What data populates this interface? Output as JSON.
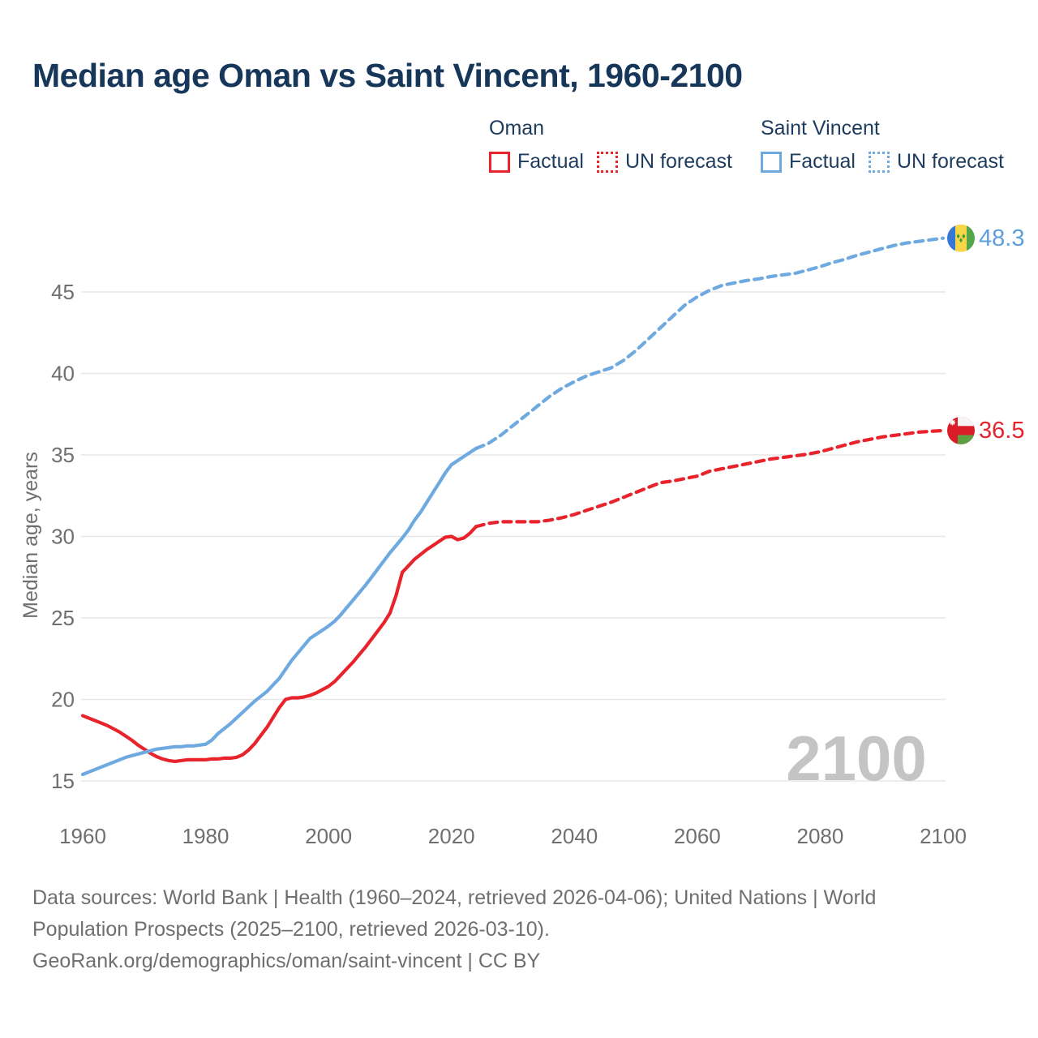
{
  "title": "Median age Oman vs Saint Vincent, 1960-2100",
  "legend": {
    "groups": [
      {
        "name": "Oman",
        "color": "#e8232b",
        "items": [
          {
            "label": "Factual",
            "style": "solid"
          },
          {
            "label": "UN forecast",
            "style": "dotted"
          }
        ]
      },
      {
        "name": "Saint Vincent",
        "color": "#6ea9e0",
        "items": [
          {
            "label": "Factual",
            "style": "solid"
          },
          {
            "label": "UN forecast",
            "style": "dotted"
          }
        ]
      }
    ]
  },
  "watermark": "2100",
  "end_labels": {
    "saint_vincent": "48.3",
    "oman": "36.5"
  },
  "footer": {
    "lines": [
      "Data sources: World Bank | Health (1960–2024, retrieved 2026-04-06); United Nations | World",
      "Population Prospects (2025–2100, retrieved 2026-03-10).",
      "GeoRank.org/demographics/oman/saint-vincent | CC BY"
    ]
  },
  "colors": {
    "oman_red": "#e8232b",
    "saint_vincent_blue": "#6ea9e0",
    "blue_label": "#5d9fdd",
    "title_navy": "#16365a",
    "axis_gray": "#6f6f6f",
    "grid_gray": "#e7e7e7",
    "watermark_gray": "#c4c4c4"
  },
  "chart_data": {
    "type": "line",
    "title": "Median age Oman vs Saint Vincent, 1960-2100",
    "xlabel": "",
    "ylabel": "Median age, years",
    "x_ticks": [
      1960,
      1980,
      2000,
      2020,
      2040,
      2060,
      2080,
      2100
    ],
    "y_ticks": [
      15,
      20,
      25,
      30,
      35,
      40,
      45
    ],
    "xlim": [
      1960,
      2100
    ],
    "ylim": [
      15,
      45
    ],
    "grid": "horizontal-only",
    "legend_position": "top",
    "series": [
      {
        "name": "Oman Factual",
        "color": "#e8232b",
        "dash": false,
        "points": [
          [
            1960,
            19.0
          ],
          [
            1961,
            18.85
          ],
          [
            1962,
            18.7
          ],
          [
            1963,
            18.55
          ],
          [
            1964,
            18.4
          ],
          [
            1965,
            18.2
          ],
          [
            1966,
            18.0
          ],
          [
            1967,
            17.75
          ],
          [
            1968,
            17.5
          ],
          [
            1969,
            17.2
          ],
          [
            1970,
            16.95
          ],
          [
            1971,
            16.7
          ],
          [
            1972,
            16.5
          ],
          [
            1973,
            16.35
          ],
          [
            1974,
            16.25
          ],
          [
            1975,
            16.2
          ],
          [
            1976,
            16.25
          ],
          [
            1977,
            16.3
          ],
          [
            1978,
            16.3
          ],
          [
            1979,
            16.3
          ],
          [
            1980,
            16.3
          ],
          [
            1981,
            16.35
          ],
          [
            1982,
            16.35
          ],
          [
            1983,
            16.4
          ],
          [
            1984,
            16.4
          ],
          [
            1985,
            16.45
          ],
          [
            1986,
            16.6
          ],
          [
            1987,
            16.9
          ],
          [
            1988,
            17.3
          ],
          [
            1989,
            17.8
          ],
          [
            1990,
            18.3
          ],
          [
            1991,
            18.9
          ],
          [
            1992,
            19.5
          ],
          [
            1993,
            20.0
          ],
          [
            1994,
            20.1
          ],
          [
            1995,
            20.1
          ],
          [
            1996,
            20.15
          ],
          [
            1997,
            20.25
          ],
          [
            1998,
            20.4
          ],
          [
            1999,
            20.6
          ],
          [
            2000,
            20.8
          ],
          [
            2001,
            21.1
          ],
          [
            2002,
            21.5
          ],
          [
            2003,
            21.9
          ],
          [
            2004,
            22.3
          ],
          [
            2005,
            22.75
          ],
          [
            2006,
            23.2
          ],
          [
            2007,
            23.7
          ],
          [
            2008,
            24.2
          ],
          [
            2009,
            24.7
          ],
          [
            2010,
            25.3
          ],
          [
            2011,
            26.4
          ],
          [
            2012,
            27.8
          ],
          [
            2013,
            28.2
          ],
          [
            2014,
            28.6
          ],
          [
            2015,
            28.9
          ],
          [
            2016,
            29.2
          ],
          [
            2017,
            29.45
          ],
          [
            2018,
            29.7
          ],
          [
            2019,
            29.95
          ],
          [
            2020,
            30.0
          ],
          [
            2021,
            29.8
          ],
          [
            2022,
            29.9
          ],
          [
            2023,
            30.2
          ],
          [
            2024,
            30.6
          ]
        ]
      },
      {
        "name": "Oman UN forecast",
        "color": "#e8232b",
        "dash": true,
        "points": [
          [
            2024,
            30.6
          ],
          [
            2026,
            30.8
          ],
          [
            2028,
            30.9
          ],
          [
            2030,
            30.9
          ],
          [
            2032,
            30.9
          ],
          [
            2034,
            30.9
          ],
          [
            2036,
            31.0
          ],
          [
            2038,
            31.15
          ],
          [
            2040,
            31.35
          ],
          [
            2042,
            31.6
          ],
          [
            2044,
            31.85
          ],
          [
            2046,
            32.1
          ],
          [
            2048,
            32.4
          ],
          [
            2050,
            32.7
          ],
          [
            2052,
            33.0
          ],
          [
            2054,
            33.3
          ],
          [
            2056,
            33.4
          ],
          [
            2058,
            33.55
          ],
          [
            2060,
            33.7
          ],
          [
            2062,
            34.0
          ],
          [
            2064,
            34.15
          ],
          [
            2066,
            34.3
          ],
          [
            2068,
            34.45
          ],
          [
            2070,
            34.6
          ],
          [
            2072,
            34.75
          ],
          [
            2074,
            34.85
          ],
          [
            2076,
            34.95
          ],
          [
            2078,
            35.05
          ],
          [
            2080,
            35.2
          ],
          [
            2082,
            35.4
          ],
          [
            2084,
            35.6
          ],
          [
            2086,
            35.8
          ],
          [
            2088,
            35.95
          ],
          [
            2090,
            36.1
          ],
          [
            2092,
            36.2
          ],
          [
            2094,
            36.3
          ],
          [
            2096,
            36.4
          ],
          [
            2098,
            36.45
          ],
          [
            2100,
            36.5
          ]
        ]
      },
      {
        "name": "Saint Vincent Factual",
        "color": "#6ea9e0",
        "dash": false,
        "points": [
          [
            1960,
            15.4
          ],
          [
            1961,
            15.55
          ],
          [
            1962,
            15.7
          ],
          [
            1963,
            15.85
          ],
          [
            1964,
            16.0
          ],
          [
            1965,
            16.15
          ],
          [
            1966,
            16.3
          ],
          [
            1967,
            16.45
          ],
          [
            1968,
            16.55
          ],
          [
            1969,
            16.65
          ],
          [
            1970,
            16.75
          ],
          [
            1971,
            16.85
          ],
          [
            1972,
            16.95
          ],
          [
            1973,
            17.0
          ],
          [
            1974,
            17.05
          ],
          [
            1975,
            17.1
          ],
          [
            1976,
            17.1
          ],
          [
            1977,
            17.15
          ],
          [
            1978,
            17.15
          ],
          [
            1979,
            17.2
          ],
          [
            1980,
            17.25
          ],
          [
            1981,
            17.5
          ],
          [
            1982,
            17.9
          ],
          [
            1983,
            18.2
          ],
          [
            1984,
            18.5
          ],
          [
            1985,
            18.85
          ],
          [
            1986,
            19.2
          ],
          [
            1987,
            19.55
          ],
          [
            1988,
            19.9
          ],
          [
            1989,
            20.2
          ],
          [
            1990,
            20.5
          ],
          [
            1991,
            20.9
          ],
          [
            1992,
            21.3
          ],
          [
            1993,
            21.85
          ],
          [
            1994,
            22.4
          ],
          [
            1995,
            22.85
          ],
          [
            1996,
            23.3
          ],
          [
            1997,
            23.75
          ],
          [
            1998,
            24.0
          ],
          [
            1999,
            24.25
          ],
          [
            2000,
            24.5
          ],
          [
            2001,
            24.8
          ],
          [
            2002,
            25.2
          ],
          [
            2003,
            25.65
          ],
          [
            2004,
            26.1
          ],
          [
            2005,
            26.55
          ],
          [
            2006,
            27.0
          ],
          [
            2007,
            27.5
          ],
          [
            2008,
            28.0
          ],
          [
            2009,
            28.5
          ],
          [
            2010,
            29.0
          ],
          [
            2011,
            29.45
          ],
          [
            2012,
            29.9
          ],
          [
            2013,
            30.4
          ],
          [
            2014,
            31.0
          ],
          [
            2015,
            31.5
          ],
          [
            2016,
            32.1
          ],
          [
            2017,
            32.7
          ],
          [
            2018,
            33.3
          ],
          [
            2019,
            33.9
          ],
          [
            2020,
            34.4
          ],
          [
            2021,
            34.65
          ],
          [
            2022,
            34.9
          ],
          [
            2023,
            35.15
          ],
          [
            2024,
            35.4
          ]
        ]
      },
      {
        "name": "Saint Vincent UN forecast",
        "color": "#6ea9e0",
        "dash": true,
        "points": [
          [
            2024,
            35.4
          ],
          [
            2026,
            35.7
          ],
          [
            2028,
            36.2
          ],
          [
            2030,
            36.8
          ],
          [
            2032,
            37.4
          ],
          [
            2034,
            38.0
          ],
          [
            2036,
            38.6
          ],
          [
            2038,
            39.1
          ],
          [
            2040,
            39.5
          ],
          [
            2042,
            39.85
          ],
          [
            2044,
            40.1
          ],
          [
            2046,
            40.35
          ],
          [
            2048,
            40.8
          ],
          [
            2050,
            41.4
          ],
          [
            2052,
            42.1
          ],
          [
            2054,
            42.8
          ],
          [
            2056,
            43.5
          ],
          [
            2058,
            44.2
          ],
          [
            2060,
            44.7
          ],
          [
            2062,
            45.1
          ],
          [
            2064,
            45.4
          ],
          [
            2066,
            45.55
          ],
          [
            2068,
            45.7
          ],
          [
            2070,
            45.8
          ],
          [
            2072,
            45.95
          ],
          [
            2074,
            46.05
          ],
          [
            2076,
            46.15
          ],
          [
            2078,
            46.35
          ],
          [
            2080,
            46.55
          ],
          [
            2082,
            46.8
          ],
          [
            2084,
            47.0
          ],
          [
            2086,
            47.25
          ],
          [
            2088,
            47.45
          ],
          [
            2090,
            47.65
          ],
          [
            2092,
            47.85
          ],
          [
            2094,
            48.0
          ],
          [
            2096,
            48.1
          ],
          [
            2098,
            48.2
          ],
          [
            2100,
            48.3
          ]
        ]
      }
    ],
    "end_values": {
      "oman_2100": 36.5,
      "saint_vincent_2100": 48.3
    }
  }
}
